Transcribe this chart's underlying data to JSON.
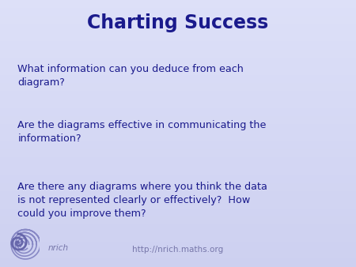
{
  "title": "Charting Success",
  "title_color": "#1a1a8c",
  "title_fontsize": 17,
  "title_fontweight": "bold",
  "body_text": [
    "What information can you deduce from each\ndiagram?",
    "Are the diagrams effective in communicating the\ninformation?",
    "Are there any diagrams where you think the data\nis not represented clearly or effectively?  How\ncould you improve them?"
  ],
  "body_color": "#1a1a8c",
  "body_fontsize": 9.2,
  "footer_url": "http://nrich.maths.org",
  "footer_color": "#7777aa",
  "footer_fontsize": 7.5,
  "nrich_text": "nrich",
  "nrich_color": "#7777aa",
  "nrich_fontsize": 7.5,
  "bg_color_top_left": "#cdd0f0",
  "bg_color_bottom_right": "#dde0f8",
  "figsize": [
    4.5,
    3.38
  ],
  "dpi": 100
}
